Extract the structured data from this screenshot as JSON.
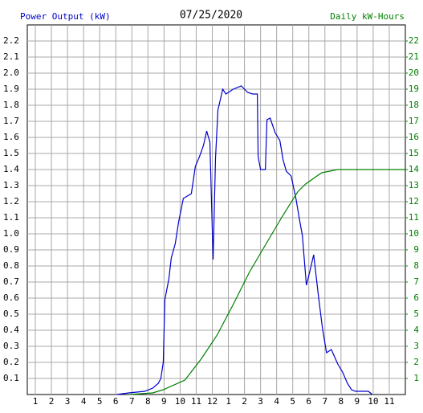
{
  "chart_data": {
    "type": "line",
    "title": "07/25/2020",
    "ylabel": "Power Output (kW)",
    "y2label": "Daily kW-Hours",
    "xlim": [
      0.5,
      24
    ],
    "xticks": [
      1,
      2,
      3,
      4,
      5,
      6,
      7,
      8,
      9,
      10,
      11,
      12,
      {
        "value": 13,
        "label": "1"
      },
      {
        "value": 14,
        "label": "2"
      },
      {
        "value": 15,
        "label": "3"
      },
      {
        "value": 16,
        "label": "4"
      },
      {
        "value": 17,
        "label": "5"
      },
      {
        "value": 18,
        "label": "6"
      },
      {
        "value": 19,
        "label": "7"
      },
      {
        "value": 20,
        "label": "8"
      },
      {
        "value": 21,
        "label": "9"
      },
      {
        "value": 22,
        "label": "10"
      },
      {
        "value": 23,
        "label": "11"
      }
    ],
    "ylim": [
      0,
      2.3
    ],
    "yticks": [
      0.1,
      0.2,
      0.3,
      0.4,
      0.5,
      0.6,
      0.7,
      0.8,
      0.9,
      {
        "value": 1,
        "label": "1.0"
      },
      1.1,
      1.2,
      1.3,
      1.4,
      1.5,
      1.6,
      1.7,
      1.8,
      1.9,
      {
        "value": 2,
        "label": "2.0"
      },
      2.1,
      2.2
    ],
    "y2lim": [
      0,
      23
    ],
    "y2ticks": [
      1,
      2,
      3,
      4,
      5,
      6,
      7,
      8,
      9,
      10,
      11,
      12,
      13,
      14,
      15,
      16,
      17,
      18,
      19,
      20,
      21,
      22
    ],
    "grid": true,
    "series": [
      {
        "name": "Power Output (kW)",
        "color": "#0000cc",
        "axis": "y",
        "x": [
          6.05,
          6.8,
          7.8,
          8.3,
          8.65,
          8.8,
          8.95,
          9.05,
          9.3,
          9.45,
          9.7,
          9.9,
          10.2,
          10.7,
          10.95,
          11.2,
          11.45,
          11.65,
          11.85,
          12.05,
          12.2,
          12.35,
          12.65,
          12.85,
          13.3,
          13.8,
          14.2,
          14.5,
          14.8,
          14.85,
          15.0,
          15.3,
          15.4,
          15.6,
          15.9,
          16.2,
          16.4,
          16.6,
          16.9,
          17.2,
          17.4,
          17.6,
          17.85,
          18.05,
          18.3,
          18.6,
          18.85,
          19.1,
          19.4,
          19.8,
          20.1,
          20.4,
          20.65,
          20.9,
          21.7,
          21.95
        ],
        "values": [
          0,
          0.01,
          0.02,
          0.04,
          0.07,
          0.1,
          0.2,
          0.59,
          0.72,
          0.85,
          0.94,
          1.07,
          1.22,
          1.25,
          1.42,
          1.48,
          1.55,
          1.64,
          1.57,
          0.84,
          1.47,
          1.77,
          1.9,
          1.87,
          1.9,
          1.92,
          1.88,
          1.87,
          1.87,
          1.48,
          1.4,
          1.4,
          1.71,
          1.72,
          1.63,
          1.58,
          1.46,
          1.39,
          1.36,
          1.22,
          1.1,
          0.99,
          0.68,
          0.76,
          0.87,
          0.61,
          0.41,
          0.26,
          0.28,
          0.19,
          0.14,
          0.07,
          0.03,
          0.02,
          0.02,
          0
        ]
      },
      {
        "name": "Daily kW-Hours",
        "color": "#008000",
        "axis": "y2",
        "x": [
          6.8,
          8.3,
          8.95,
          10.3,
          11.3,
          12.3,
          13.3,
          14.3,
          15.3,
          16.3,
          17.3,
          17.8,
          18.8,
          19.8,
          24
        ],
        "values": [
          0,
          0.1,
          0.3,
          0.9,
          2.2,
          3.7,
          5.6,
          7.6,
          9.3,
          11,
          12.6,
          13.1,
          13.8,
          14,
          14
        ]
      }
    ]
  }
}
